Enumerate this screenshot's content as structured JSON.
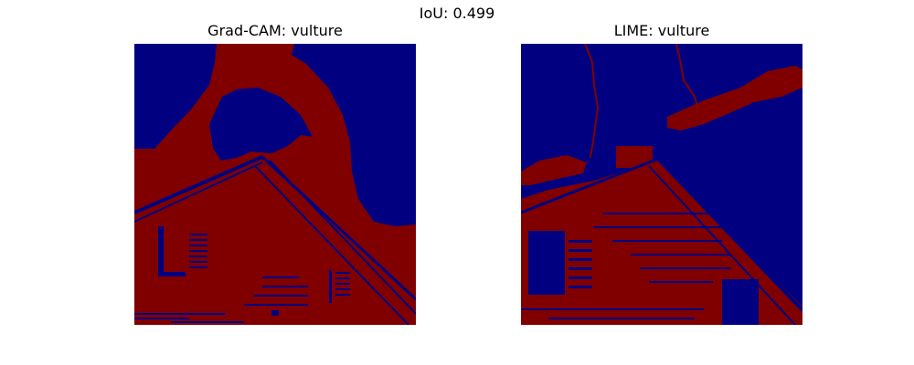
{
  "figure": {
    "suptitle": "IoU: 0.499"
  },
  "panels": [
    {
      "title": "Grad-CAM: vulture",
      "method": "Grad-CAM",
      "label": "vulture"
    },
    {
      "title": "LIME: vulture",
      "method": "LIME",
      "label": "vulture"
    }
  ],
  "colors": {
    "mask_on": "#800000",
    "mask_off": "#000080"
  }
}
